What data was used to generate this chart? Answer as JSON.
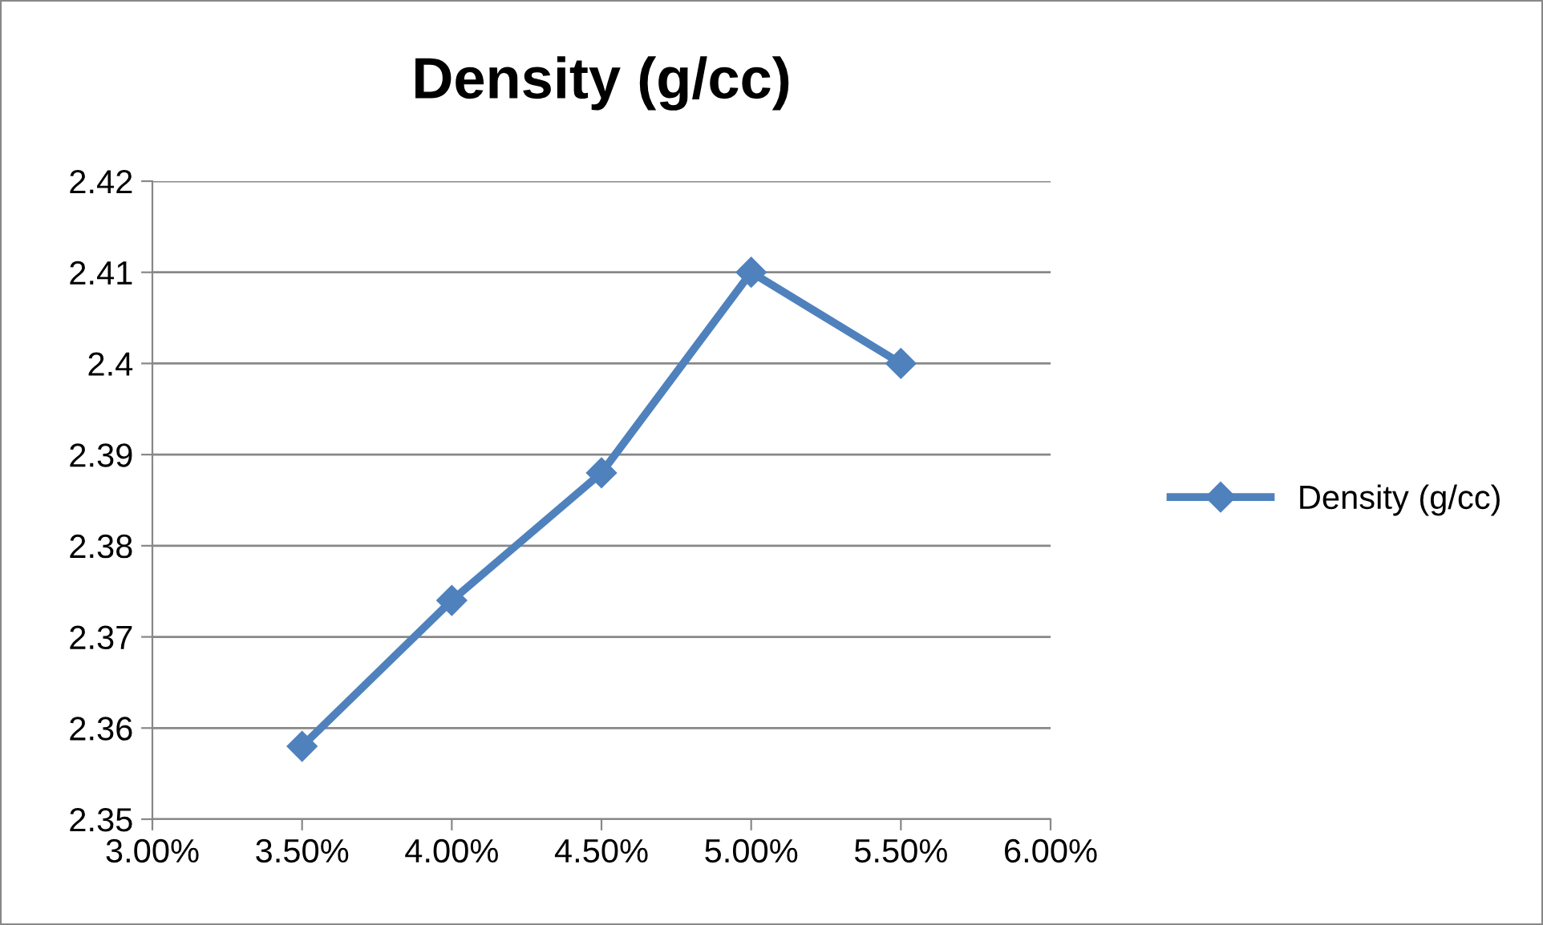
{
  "chart_data": {
    "type": "line",
    "title": "Density (g/cc)",
    "x": [
      3.5,
      4.0,
      4.5,
      5.0,
      5.5
    ],
    "series": [
      {
        "name": "Density (g/cc)",
        "color": "#4f81bd",
        "values": [
          2.358,
          2.374,
          2.388,
          2.41,
          2.4
        ]
      }
    ],
    "xlim": [
      3.0,
      6.0
    ],
    "xticks": [
      {
        "value": 3.0,
        "label": "3.00%"
      },
      {
        "value": 3.5,
        "label": "3.50%"
      },
      {
        "value": 4.0,
        "label": "4.00%"
      },
      {
        "value": 4.5,
        "label": "4.50%"
      },
      {
        "value": 5.0,
        "label": "5.00%"
      },
      {
        "value": 5.5,
        "label": "5.50%"
      },
      {
        "value": 6.0,
        "label": "6.00%"
      }
    ],
    "ylim": [
      2.35,
      2.42
    ],
    "yticks": [
      2.35,
      2.36,
      2.37,
      2.38,
      2.39,
      2.4,
      2.41,
      2.42
    ],
    "grid": "y",
    "legend": "right",
    "marker": "diamond",
    "line_style": "solid"
  }
}
